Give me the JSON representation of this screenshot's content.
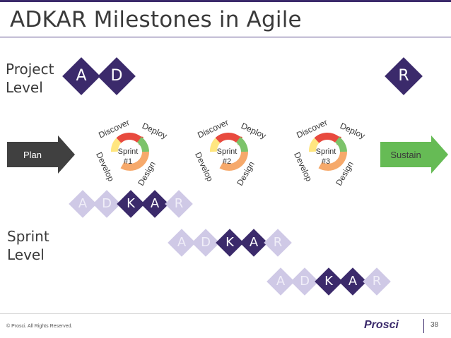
{
  "title": "ADKAR Milestones in Agile",
  "project_level": {
    "label_line1": "Project",
    "label_line2": "Level",
    "milestones": [
      "A",
      "D",
      "R"
    ]
  },
  "plan_label": "Plan",
  "sustain_label": "Sustain",
  "sprints": [
    {
      "label_line1": "Sprint",
      "label_line2": "#1",
      "discover": "Discover",
      "deploy": "Deploy",
      "develop": "Develop",
      "design": "Design"
    },
    {
      "label_line1": "Sprint",
      "label_line2": "#2",
      "discover": "Discover",
      "deploy": "Deploy",
      "develop": "Develop",
      "design": "Design"
    },
    {
      "label_line1": "Sprint",
      "label_line2": "#3",
      "discover": "Discover",
      "deploy": "Deploy",
      "develop": "Develop",
      "design": "Design"
    }
  ],
  "sprint_level": {
    "label_line1": "Sprint",
    "label_line2": "Level",
    "rows": [
      [
        "A",
        "D",
        "K",
        "A",
        "R"
      ],
      [
        "A",
        "D",
        "K",
        "A",
        "R"
      ],
      [
        "A",
        "D",
        "K",
        "A",
        "R"
      ]
    ]
  },
  "footer": {
    "copyright": "© Prosci. All Rights Reserved.",
    "logo": "Prosci",
    "page_number": "38"
  },
  "colors": {
    "dark_purple": "#3b2a6b",
    "light_purple": "#cfc9e6",
    "plan_gray": "#404040",
    "sustain_green": "#66bb55",
    "cycle_red": "#e84a3e",
    "cycle_green": "#7cc36a",
    "cycle_yellow": "#ffe680",
    "cycle_orange": "#f6a96b"
  }
}
